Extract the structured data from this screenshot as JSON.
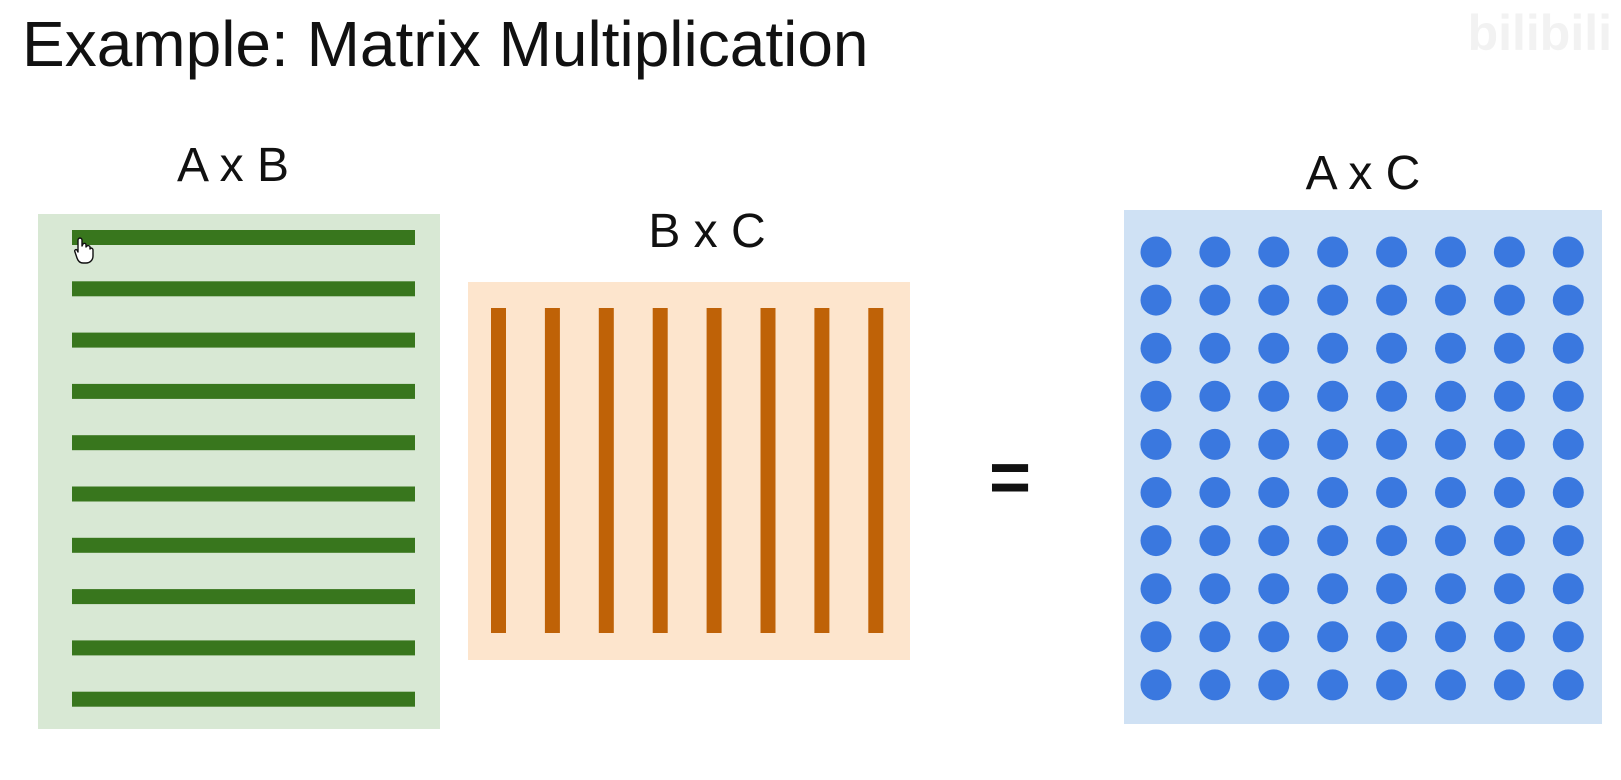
{
  "slide": {
    "title": "Example: Matrix Multiplication",
    "watermark": "bilibili",
    "equals_sign": "="
  },
  "matrices": {
    "ab": {
      "label": "A x B",
      "row_count": 10,
      "fill_color": "#d8e8d4",
      "bar_color": "#38761d"
    },
    "bc": {
      "label": "B x C",
      "column_count": 8,
      "fill_color": "#fde5cd",
      "bar_color": "#bf6207"
    },
    "ac": {
      "label": "A x C",
      "rows": 10,
      "columns": 8,
      "fill_color": "#cfe1f4",
      "dot_color": "#3a78df"
    }
  },
  "icons": {
    "cursor": "hand-cursor-icon"
  }
}
